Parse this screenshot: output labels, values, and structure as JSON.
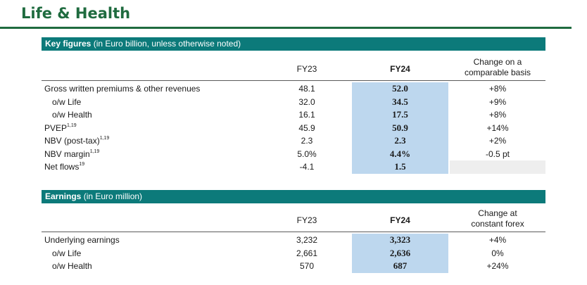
{
  "page": {
    "title": "Life & Health"
  },
  "key_figures": {
    "header_bold": "Key figures",
    "header_note": " (in Euro billion, unless otherwise noted)",
    "col_fy23": "FY23",
    "col_fy24": "FY24",
    "col_change_line1": "Change on a",
    "col_change_line2": "comparable basis",
    "rows": [
      {
        "label": "Gross written premiums & other revenues",
        "sup": "",
        "fy23": "48.1",
        "fy24": "52.0",
        "change": "+8%"
      },
      {
        "label": "o/w Life",
        "sup": "",
        "fy23": "32.0",
        "fy24": "34.5",
        "change": "+9%"
      },
      {
        "label": "o/w Health",
        "sup": "",
        "fy23": "16.1",
        "fy24": "17.5",
        "change": "+8%"
      },
      {
        "label": "PVEP",
        "sup": "1,19",
        "fy23": "45.9",
        "fy24": "50.9",
        "change": "+14%"
      },
      {
        "label": "NBV (post-tax)",
        "sup": "1,19",
        "fy23": "2.3",
        "fy24": "2.3",
        "change": "+2%"
      },
      {
        "label": "NBV margin",
        "sup": "1,19",
        "fy23": "5.0%",
        "fy24": "4.4%",
        "change": "-0.5 pt"
      },
      {
        "label": "Net flows",
        "sup": "19",
        "fy23": "-4.1",
        "fy24": "1.5",
        "change": ""
      }
    ]
  },
  "earnings": {
    "header_bold": "Earnings",
    "header_note": " (in Euro million)",
    "col_fy23": "FY23",
    "col_fy24": "FY24",
    "col_change_line1": "Change at",
    "col_change_line2": "constant forex",
    "rows": [
      {
        "label": "Underlying earnings",
        "fy23": "3,232",
        "fy24": "3,323",
        "change": "+4%"
      },
      {
        "label": "o/w Life",
        "fy23": "2,661",
        "fy24": "2,636",
        "change": "0%"
      },
      {
        "label": "o/w Health",
        "fy23": "570",
        "fy24": "687",
        "change": "+24%"
      }
    ]
  }
}
